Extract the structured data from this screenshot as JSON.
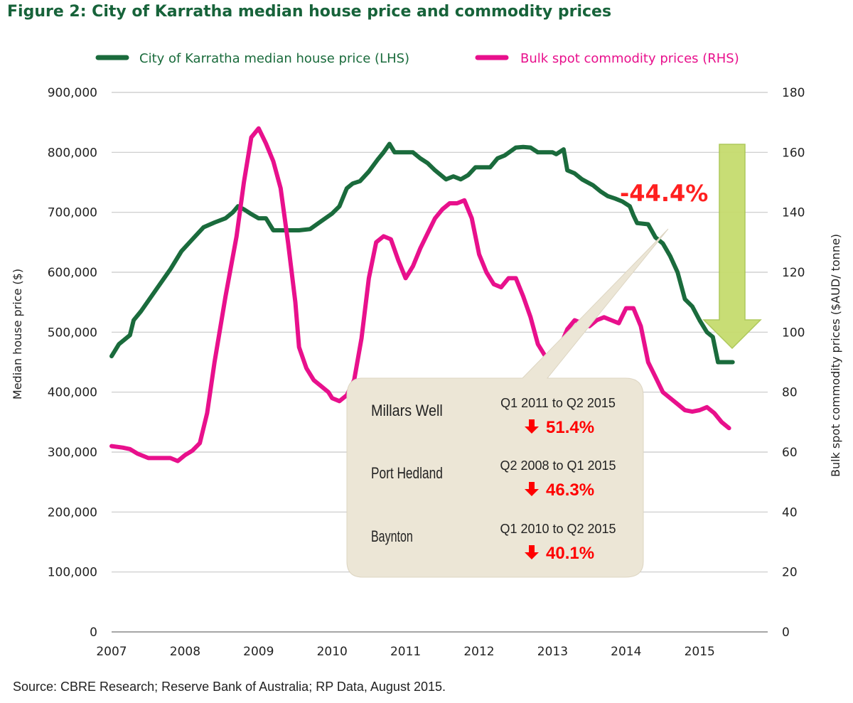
{
  "title": "Figure 2: City of Karratha median house price and commodity prices",
  "source": "Source: CBRE Research; Reserve Bank of Australia; RP Data, August 2015.",
  "colors": {
    "house_price": "#1a6b3c",
    "commodity": "#e8108c",
    "grid": "#c8c8c8",
    "callout_bg": "#ece6d6",
    "arrow_fill": "#c6dc6e",
    "annotation_red": "#ff2020"
  },
  "chart_data": {
    "type": "line",
    "title": "Figure 2: City of Karratha median house price and commodity prices",
    "x_ticks": [
      "2007",
      "2008",
      "2009",
      "2010",
      "2011",
      "2012",
      "2013",
      "2014",
      "2015"
    ],
    "xlim": [
      2007,
      2016
    ],
    "y_left": {
      "label": "Median house price ($)",
      "ylim": [
        0,
        900000
      ],
      "ticks": [
        "0",
        "100,000",
        "200,000",
        "300,000",
        "400,000",
        "500,000",
        "600,000",
        "700,000",
        "800,000",
        "900,000"
      ]
    },
    "y_right": {
      "label": "Bulk spot commodity prices ($AUD/ tonne)",
      "ylim": [
        0,
        180
      ],
      "ticks": [
        "0",
        "20",
        "40",
        "60",
        "80",
        "100",
        "120",
        "140",
        "160",
        "180"
      ]
    },
    "grid": true,
    "legend_position": "top",
    "series": [
      {
        "name": "City of Karratha median house price (LHS)",
        "axis": "left",
        "color": "#1a6b3c",
        "points": [
          [
            2007.0,
            460000
          ],
          [
            2007.1,
            480000
          ],
          [
            2007.25,
            495000
          ],
          [
            2007.3,
            520000
          ],
          [
            2007.4,
            535000
          ],
          [
            2007.6,
            570000
          ],
          [
            2007.8,
            605000
          ],
          [
            2007.95,
            635000
          ],
          [
            2008.1,
            655000
          ],
          [
            2008.25,
            675000
          ],
          [
            2008.4,
            683000
          ],
          [
            2008.55,
            690000
          ],
          [
            2008.65,
            700000
          ],
          [
            2008.72,
            710000
          ],
          [
            2008.8,
            705000
          ],
          [
            2008.9,
            697000
          ],
          [
            2009.0,
            690000
          ],
          [
            2009.1,
            690000
          ],
          [
            2009.2,
            670000
          ],
          [
            2009.4,
            670000
          ],
          [
            2009.55,
            670000
          ],
          [
            2009.7,
            672000
          ],
          [
            2009.85,
            685000
          ],
          [
            2010.0,
            698000
          ],
          [
            2010.1,
            710000
          ],
          [
            2010.2,
            740000
          ],
          [
            2010.28,
            748000
          ],
          [
            2010.38,
            752000
          ],
          [
            2010.5,
            768000
          ],
          [
            2010.62,
            788000
          ],
          [
            2010.7,
            800000
          ],
          [
            2010.78,
            814000
          ],
          [
            2010.85,
            800000
          ],
          [
            2011.0,
            800000
          ],
          [
            2011.1,
            800000
          ],
          [
            2011.2,
            790000
          ],
          [
            2011.3,
            782000
          ],
          [
            2011.4,
            770000
          ],
          [
            2011.55,
            755000
          ],
          [
            2011.65,
            760000
          ],
          [
            2011.75,
            755000
          ],
          [
            2011.85,
            762000
          ],
          [
            2011.95,
            775000
          ],
          [
            2012.05,
            775000
          ],
          [
            2012.15,
            775000
          ],
          [
            2012.25,
            790000
          ],
          [
            2012.35,
            795000
          ],
          [
            2012.5,
            808000
          ],
          [
            2012.6,
            809000
          ],
          [
            2012.7,
            808000
          ],
          [
            2012.8,
            800000
          ],
          [
            2012.9,
            800000
          ],
          [
            2013.0,
            800000
          ],
          [
            2013.05,
            797000
          ],
          [
            2013.15,
            805000
          ],
          [
            2013.2,
            770000
          ],
          [
            2013.3,
            765000
          ],
          [
            2013.4,
            755000
          ],
          [
            2013.55,
            745000
          ],
          [
            2013.65,
            735000
          ],
          [
            2013.75,
            727000
          ],
          [
            2013.85,
            723000
          ],
          [
            2013.95,
            718000
          ],
          [
            2014.05,
            710000
          ],
          [
            2014.1,
            695000
          ],
          [
            2014.15,
            682000
          ],
          [
            2014.3,
            680000
          ],
          [
            2014.4,
            658000
          ],
          [
            2014.5,
            648000
          ],
          [
            2014.6,
            627000
          ],
          [
            2014.7,
            600000
          ],
          [
            2014.8,
            555000
          ],
          [
            2014.9,
            543000
          ],
          [
            2015.0,
            520000
          ],
          [
            2015.1,
            500000
          ],
          [
            2015.18,
            492000
          ],
          [
            2015.25,
            450000
          ],
          [
            2015.45,
            450000
          ]
        ]
      },
      {
        "name": "Bulk spot commodity prices (RHS)",
        "axis": "right",
        "color": "#e8108c",
        "points": [
          [
            2007.0,
            62
          ],
          [
            2007.15,
            61.5
          ],
          [
            2007.25,
            61
          ],
          [
            2007.35,
            59.5
          ],
          [
            2007.5,
            58
          ],
          [
            2007.65,
            58
          ],
          [
            2007.8,
            58
          ],
          [
            2007.9,
            57
          ],
          [
            2008.0,
            59
          ],
          [
            2008.1,
            60.5
          ],
          [
            2008.2,
            63
          ],
          [
            2008.3,
            73
          ],
          [
            2008.4,
            90
          ],
          [
            2008.55,
            112
          ],
          [
            2008.7,
            132
          ],
          [
            2008.8,
            150
          ],
          [
            2008.9,
            165
          ],
          [
            2009.0,
            168
          ],
          [
            2009.1,
            163
          ],
          [
            2009.2,
            157
          ],
          [
            2009.3,
            148
          ],
          [
            2009.4,
            130
          ],
          [
            2009.5,
            110
          ],
          [
            2009.55,
            95
          ],
          [
            2009.65,
            88
          ],
          [
            2009.75,
            84
          ],
          [
            2009.85,
            82
          ],
          [
            2009.95,
            80
          ],
          [
            2010.0,
            78
          ],
          [
            2010.1,
            77
          ],
          [
            2010.2,
            79
          ],
          [
            2010.3,
            84
          ],
          [
            2010.4,
            98
          ],
          [
            2010.5,
            118
          ],
          [
            2010.6,
            130
          ],
          [
            2010.7,
            132
          ],
          [
            2010.8,
            131
          ],
          [
            2010.9,
            124
          ],
          [
            2011.0,
            118
          ],
          [
            2011.1,
            122
          ],
          [
            2011.2,
            128
          ],
          [
            2011.3,
            133
          ],
          [
            2011.4,
            138
          ],
          [
            2011.5,
            141
          ],
          [
            2011.6,
            143
          ],
          [
            2011.7,
            143
          ],
          [
            2011.8,
            144
          ],
          [
            2011.9,
            138
          ],
          [
            2012.0,
            126
          ],
          [
            2012.1,
            120
          ],
          [
            2012.2,
            116
          ],
          [
            2012.3,
            115
          ],
          [
            2012.4,
            118
          ],
          [
            2012.5,
            118
          ],
          [
            2012.6,
            112
          ],
          [
            2012.7,
            105
          ],
          [
            2012.8,
            96
          ],
          [
            2012.9,
            92
          ],
          [
            2013.0,
            91
          ],
          [
            2013.1,
            95
          ],
          [
            2013.2,
            101
          ],
          [
            2013.3,
            104
          ],
          [
            2013.4,
            103
          ],
          [
            2013.5,
            102
          ],
          [
            2013.6,
            104
          ],
          [
            2013.7,
            105
          ],
          [
            2013.8,
            104
          ],
          [
            2013.9,
            103
          ],
          [
            2014.0,
            108
          ],
          [
            2014.1,
            108
          ],
          [
            2014.2,
            102
          ],
          [
            2014.3,
            90
          ],
          [
            2014.4,
            85
          ],
          [
            2014.5,
            80
          ],
          [
            2014.6,
            78
          ],
          [
            2014.7,
            76
          ],
          [
            2014.8,
            74
          ],
          [
            2014.9,
            73.5
          ],
          [
            2015.0,
            74
          ],
          [
            2015.1,
            75
          ],
          [
            2015.2,
            73
          ],
          [
            2015.3,
            70
          ],
          [
            2015.4,
            68
          ]
        ]
      }
    ],
    "annotations": [
      {
        "text": "-44.4%",
        "color": "#ff2020"
      }
    ]
  },
  "callout": {
    "rows": [
      {
        "suburb": "Millars Well",
        "period": "Q1 2011 to Q2 2015",
        "change": "51.4%"
      },
      {
        "suburb": "Port Hedland",
        "period": "Q2 2008 to Q1 2015",
        "change": "46.3%"
      },
      {
        "suburb": "Baynton",
        "period": "Q1 2010 to Q2 2015",
        "change": "40.1%"
      }
    ]
  }
}
